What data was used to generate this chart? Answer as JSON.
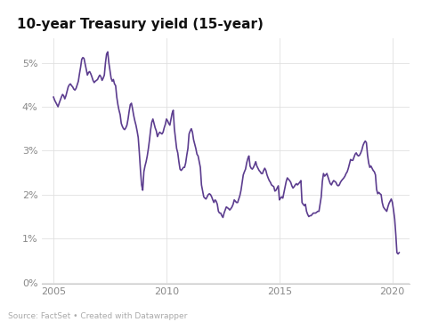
{
  "title": "10-year Treasury yield (15-year)",
  "line_color": "#5c3d8f",
  "background_color": "#ffffff",
  "source_text": "Source: FactSet • Created with Datawrapper",
  "xlim_start": 2004.5,
  "xlim_end": 2020.75,
  "ylim_min": -0.02,
  "ylim_max": 5.55,
  "yticks": [
    0,
    1,
    2,
    3,
    4,
    5
  ],
  "ytick_labels": [
    "0%",
    "1%",
    "2%",
    "3%",
    "4%",
    "5%"
  ],
  "xtick_years": [
    2005,
    2010,
    2015,
    2020
  ],
  "data": [
    [
      2005.0,
      4.22
    ],
    [
      2005.05,
      4.15
    ],
    [
      2005.1,
      4.1
    ],
    [
      2005.15,
      4.05
    ],
    [
      2005.2,
      4.0
    ],
    [
      2005.25,
      4.08
    ],
    [
      2005.3,
      4.15
    ],
    [
      2005.35,
      4.22
    ],
    [
      2005.4,
      4.28
    ],
    [
      2005.45,
      4.25
    ],
    [
      2005.5,
      4.18
    ],
    [
      2005.55,
      4.25
    ],
    [
      2005.6,
      4.35
    ],
    [
      2005.65,
      4.45
    ],
    [
      2005.7,
      4.5
    ],
    [
      2005.75,
      4.52
    ],
    [
      2005.8,
      4.48
    ],
    [
      2005.85,
      4.45
    ],
    [
      2005.9,
      4.4
    ],
    [
      2005.95,
      4.38
    ],
    [
      2006.0,
      4.42
    ],
    [
      2006.05,
      4.5
    ],
    [
      2006.1,
      4.58
    ],
    [
      2006.15,
      4.75
    ],
    [
      2006.2,
      4.9
    ],
    [
      2006.25,
      5.08
    ],
    [
      2006.3,
      5.12
    ],
    [
      2006.35,
      5.1
    ],
    [
      2006.4,
      4.98
    ],
    [
      2006.45,
      4.85
    ],
    [
      2006.5,
      4.72
    ],
    [
      2006.55,
      4.78
    ],
    [
      2006.6,
      4.8
    ],
    [
      2006.65,
      4.75
    ],
    [
      2006.7,
      4.68
    ],
    [
      2006.75,
      4.6
    ],
    [
      2006.8,
      4.55
    ],
    [
      2006.85,
      4.58
    ],
    [
      2006.9,
      4.6
    ],
    [
      2006.95,
      4.62
    ],
    [
      2007.0,
      4.68
    ],
    [
      2007.05,
      4.72
    ],
    [
      2007.1,
      4.68
    ],
    [
      2007.15,
      4.6
    ],
    [
      2007.2,
      4.65
    ],
    [
      2007.25,
      4.72
    ],
    [
      2007.3,
      5.0
    ],
    [
      2007.35,
      5.2
    ],
    [
      2007.4,
      5.25
    ],
    [
      2007.45,
      5.0
    ],
    [
      2007.5,
      4.82
    ],
    [
      2007.55,
      4.65
    ],
    [
      2007.6,
      4.58
    ],
    [
      2007.65,
      4.62
    ],
    [
      2007.7,
      4.52
    ],
    [
      2007.75,
      4.48
    ],
    [
      2007.8,
      4.22
    ],
    [
      2007.85,
      4.05
    ],
    [
      2007.9,
      3.92
    ],
    [
      2007.95,
      3.82
    ],
    [
      2008.0,
      3.62
    ],
    [
      2008.05,
      3.55
    ],
    [
      2008.1,
      3.5
    ],
    [
      2008.15,
      3.48
    ],
    [
      2008.2,
      3.52
    ],
    [
      2008.25,
      3.58
    ],
    [
      2008.3,
      3.72
    ],
    [
      2008.35,
      3.9
    ],
    [
      2008.4,
      4.05
    ],
    [
      2008.45,
      4.08
    ],
    [
      2008.5,
      3.95
    ],
    [
      2008.55,
      3.8
    ],
    [
      2008.6,
      3.68
    ],
    [
      2008.65,
      3.58
    ],
    [
      2008.7,
      3.45
    ],
    [
      2008.75,
      3.3
    ],
    [
      2008.8,
      2.95
    ],
    [
      2008.85,
      2.55
    ],
    [
      2008.9,
      2.22
    ],
    [
      2008.95,
      2.1
    ],
    [
      2009.0,
      2.52
    ],
    [
      2009.05,
      2.65
    ],
    [
      2009.1,
      2.75
    ],
    [
      2009.15,
      2.88
    ],
    [
      2009.2,
      3.05
    ],
    [
      2009.25,
      3.25
    ],
    [
      2009.3,
      3.48
    ],
    [
      2009.35,
      3.65
    ],
    [
      2009.4,
      3.72
    ],
    [
      2009.45,
      3.62
    ],
    [
      2009.5,
      3.52
    ],
    [
      2009.55,
      3.45
    ],
    [
      2009.6,
      3.32
    ],
    [
      2009.65,
      3.38
    ],
    [
      2009.7,
      3.42
    ],
    [
      2009.75,
      3.4
    ],
    [
      2009.8,
      3.38
    ],
    [
      2009.85,
      3.42
    ],
    [
      2009.9,
      3.52
    ],
    [
      2009.95,
      3.6
    ],
    [
      2010.0,
      3.72
    ],
    [
      2010.05,
      3.68
    ],
    [
      2010.1,
      3.62
    ],
    [
      2010.15,
      3.58
    ],
    [
      2010.2,
      3.72
    ],
    [
      2010.25,
      3.85
    ],
    [
      2010.3,
      3.92
    ],
    [
      2010.35,
      3.5
    ],
    [
      2010.4,
      3.28
    ],
    [
      2010.45,
      3.05
    ],
    [
      2010.5,
      2.95
    ],
    [
      2010.55,
      2.75
    ],
    [
      2010.6,
      2.58
    ],
    [
      2010.65,
      2.55
    ],
    [
      2010.7,
      2.58
    ],
    [
      2010.75,
      2.62
    ],
    [
      2010.8,
      2.62
    ],
    [
      2010.85,
      2.72
    ],
    [
      2010.9,
      2.9
    ],
    [
      2010.95,
      3.05
    ],
    [
      2011.0,
      3.38
    ],
    [
      2011.05,
      3.45
    ],
    [
      2011.1,
      3.5
    ],
    [
      2011.15,
      3.42
    ],
    [
      2011.2,
      3.25
    ],
    [
      2011.25,
      3.15
    ],
    [
      2011.3,
      3.05
    ],
    [
      2011.35,
      2.92
    ],
    [
      2011.4,
      2.88
    ],
    [
      2011.45,
      2.75
    ],
    [
      2011.5,
      2.62
    ],
    [
      2011.55,
      2.22
    ],
    [
      2011.6,
      2.08
    ],
    [
      2011.65,
      1.95
    ],
    [
      2011.7,
      1.92
    ],
    [
      2011.75,
      1.9
    ],
    [
      2011.8,
      1.95
    ],
    [
      2011.85,
      2.0
    ],
    [
      2011.9,
      2.02
    ],
    [
      2011.95,
      2.0
    ],
    [
      2012.0,
      1.95
    ],
    [
      2012.05,
      1.88
    ],
    [
      2012.1,
      1.82
    ],
    [
      2012.15,
      1.88
    ],
    [
      2012.2,
      1.85
    ],
    [
      2012.25,
      1.78
    ],
    [
      2012.3,
      1.62
    ],
    [
      2012.35,
      1.58
    ],
    [
      2012.4,
      1.58
    ],
    [
      2012.45,
      1.52
    ],
    [
      2012.5,
      1.48
    ],
    [
      2012.55,
      1.58
    ],
    [
      2012.6,
      1.65
    ],
    [
      2012.65,
      1.72
    ],
    [
      2012.7,
      1.7
    ],
    [
      2012.75,
      1.68
    ],
    [
      2012.8,
      1.65
    ],
    [
      2012.85,
      1.68
    ],
    [
      2012.9,
      1.72
    ],
    [
      2012.95,
      1.78
    ],
    [
      2013.0,
      1.88
    ],
    [
      2013.05,
      1.85
    ],
    [
      2013.1,
      1.82
    ],
    [
      2013.15,
      1.82
    ],
    [
      2013.2,
      1.9
    ],
    [
      2013.25,
      1.98
    ],
    [
      2013.3,
      2.1
    ],
    [
      2013.35,
      2.28
    ],
    [
      2013.4,
      2.45
    ],
    [
      2013.45,
      2.52
    ],
    [
      2013.5,
      2.58
    ],
    [
      2013.55,
      2.72
    ],
    [
      2013.6,
      2.82
    ],
    [
      2013.65,
      2.88
    ],
    [
      2013.7,
      2.65
    ],
    [
      2013.75,
      2.6
    ],
    [
      2013.8,
      2.58
    ],
    [
      2013.85,
      2.62
    ],
    [
      2013.9,
      2.68
    ],
    [
      2013.95,
      2.75
    ],
    [
      2014.0,
      2.65
    ],
    [
      2014.05,
      2.6
    ],
    [
      2014.1,
      2.55
    ],
    [
      2014.15,
      2.52
    ],
    [
      2014.2,
      2.48
    ],
    [
      2014.25,
      2.48
    ],
    [
      2014.3,
      2.55
    ],
    [
      2014.35,
      2.6
    ],
    [
      2014.4,
      2.55
    ],
    [
      2014.45,
      2.45
    ],
    [
      2014.5,
      2.38
    ],
    [
      2014.55,
      2.32
    ],
    [
      2014.6,
      2.28
    ],
    [
      2014.65,
      2.22
    ],
    [
      2014.7,
      2.2
    ],
    [
      2014.75,
      2.18
    ],
    [
      2014.8,
      2.08
    ],
    [
      2014.85,
      2.1
    ],
    [
      2014.9,
      2.15
    ],
    [
      2014.95,
      2.2
    ],
    [
      2015.0,
      1.88
    ],
    [
      2015.05,
      1.92
    ],
    [
      2015.1,
      1.95
    ],
    [
      2015.15,
      1.92
    ],
    [
      2015.2,
      2.05
    ],
    [
      2015.25,
      2.18
    ],
    [
      2015.3,
      2.3
    ],
    [
      2015.35,
      2.38
    ],
    [
      2015.4,
      2.35
    ],
    [
      2015.45,
      2.32
    ],
    [
      2015.5,
      2.28
    ],
    [
      2015.55,
      2.2
    ],
    [
      2015.6,
      2.15
    ],
    [
      2015.65,
      2.18
    ],
    [
      2015.7,
      2.22
    ],
    [
      2015.75,
      2.25
    ],
    [
      2015.8,
      2.22
    ],
    [
      2015.85,
      2.25
    ],
    [
      2015.9,
      2.28
    ],
    [
      2015.95,
      2.32
    ],
    [
      2016.0,
      1.82
    ],
    [
      2016.05,
      1.78
    ],
    [
      2016.1,
      1.75
    ],
    [
      2016.15,
      1.78
    ],
    [
      2016.2,
      1.62
    ],
    [
      2016.25,
      1.55
    ],
    [
      2016.3,
      1.5
    ],
    [
      2016.35,
      1.52
    ],
    [
      2016.4,
      1.52
    ],
    [
      2016.45,
      1.55
    ],
    [
      2016.5,
      1.58
    ],
    [
      2016.55,
      1.58
    ],
    [
      2016.6,
      1.58
    ],
    [
      2016.65,
      1.6
    ],
    [
      2016.7,
      1.62
    ],
    [
      2016.75,
      1.62
    ],
    [
      2016.8,
      1.78
    ],
    [
      2016.85,
      1.95
    ],
    [
      2016.9,
      2.3
    ],
    [
      2016.95,
      2.48
    ],
    [
      2017.0,
      2.42
    ],
    [
      2017.05,
      2.45
    ],
    [
      2017.1,
      2.48
    ],
    [
      2017.15,
      2.4
    ],
    [
      2017.2,
      2.32
    ],
    [
      2017.25,
      2.25
    ],
    [
      2017.3,
      2.22
    ],
    [
      2017.35,
      2.28
    ],
    [
      2017.4,
      2.32
    ],
    [
      2017.45,
      2.3
    ],
    [
      2017.5,
      2.28
    ],
    [
      2017.55,
      2.22
    ],
    [
      2017.6,
      2.2
    ],
    [
      2017.65,
      2.22
    ],
    [
      2017.7,
      2.28
    ],
    [
      2017.75,
      2.32
    ],
    [
      2017.8,
      2.35
    ],
    [
      2017.85,
      2.38
    ],
    [
      2017.9,
      2.42
    ],
    [
      2017.95,
      2.48
    ],
    [
      2018.0,
      2.52
    ],
    [
      2018.05,
      2.6
    ],
    [
      2018.1,
      2.7
    ],
    [
      2018.15,
      2.8
    ],
    [
      2018.2,
      2.78
    ],
    [
      2018.25,
      2.78
    ],
    [
      2018.3,
      2.85
    ],
    [
      2018.35,
      2.92
    ],
    [
      2018.4,
      2.95
    ],
    [
      2018.45,
      2.9
    ],
    [
      2018.5,
      2.88
    ],
    [
      2018.55,
      2.9
    ],
    [
      2018.6,
      2.95
    ],
    [
      2018.65,
      3.02
    ],
    [
      2018.7,
      3.12
    ],
    [
      2018.75,
      3.18
    ],
    [
      2018.8,
      3.22
    ],
    [
      2018.85,
      3.18
    ],
    [
      2018.9,
      2.9
    ],
    [
      2018.95,
      2.72
    ],
    [
      2019.0,
      2.62
    ],
    [
      2019.05,
      2.65
    ],
    [
      2019.1,
      2.6
    ],
    [
      2019.15,
      2.55
    ],
    [
      2019.2,
      2.52
    ],
    [
      2019.25,
      2.45
    ],
    [
      2019.3,
      2.12
    ],
    [
      2019.35,
      2.02
    ],
    [
      2019.4,
      2.05
    ],
    [
      2019.45,
      2.02
    ],
    [
      2019.5,
      2.0
    ],
    [
      2019.55,
      1.82
    ],
    [
      2019.6,
      1.72
    ],
    [
      2019.65,
      1.68
    ],
    [
      2019.7,
      1.65
    ],
    [
      2019.75,
      1.62
    ],
    [
      2019.8,
      1.72
    ],
    [
      2019.85,
      1.8
    ],
    [
      2019.9,
      1.85
    ],
    [
      2019.95,
      1.9
    ],
    [
      2020.0,
      1.82
    ],
    [
      2020.05,
      1.65
    ],
    [
      2020.1,
      1.45
    ],
    [
      2020.15,
      1.1
    ],
    [
      2020.2,
      0.68
    ],
    [
      2020.25,
      0.65
    ],
    [
      2020.3,
      0.68
    ]
  ]
}
